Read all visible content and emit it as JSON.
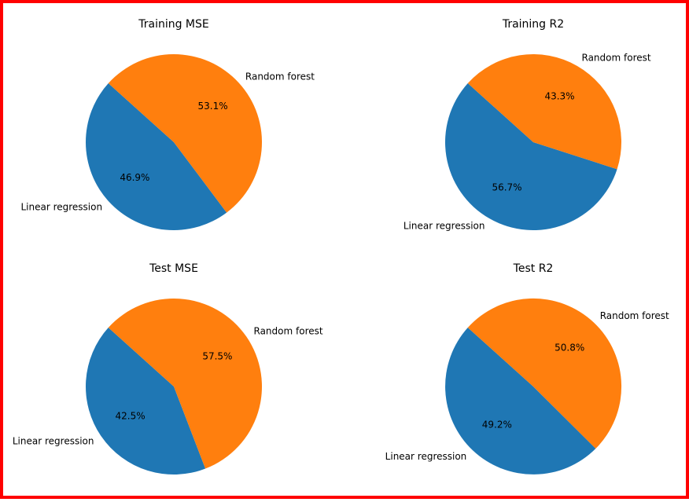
{
  "colors": {
    "frame_border": "#ff0000",
    "linear_regression": "#1f77b4",
    "random_forest": "#ff7f0e"
  },
  "chart_data": [
    {
      "type": "pie",
      "title": "Training MSE",
      "slices": [
        {
          "label": "Linear regression",
          "percent": 46.9,
          "percent_label": "46.9%",
          "color": "#1f77b4"
        },
        {
          "label": "Random forest",
          "percent": 53.1,
          "percent_label": "53.1%",
          "color": "#ff7f0e"
        }
      ]
    },
    {
      "type": "pie",
      "title": "Training R2",
      "slices": [
        {
          "label": "Linear regression",
          "percent": 56.7,
          "percent_label": "56.7%",
          "color": "#1f77b4"
        },
        {
          "label": "Random forest",
          "percent": 43.3,
          "percent_label": "43.3%",
          "color": "#ff7f0e"
        }
      ]
    },
    {
      "type": "pie",
      "title": "Test MSE",
      "slices": [
        {
          "label": "Linear regression",
          "percent": 42.5,
          "percent_label": "42.5%",
          "color": "#1f77b4"
        },
        {
          "label": "Random forest",
          "percent": 57.5,
          "percent_label": "57.5%",
          "color": "#ff7f0e"
        }
      ]
    },
    {
      "type": "pie",
      "title": "Test R2",
      "slices": [
        {
          "label": "Linear regression",
          "percent": 49.2,
          "percent_label": "49.2%",
          "color": "#1f77b4"
        },
        {
          "label": "Random forest",
          "percent": 50.8,
          "percent_label": "50.8%",
          "color": "#ff7f0e"
        }
      ]
    }
  ]
}
